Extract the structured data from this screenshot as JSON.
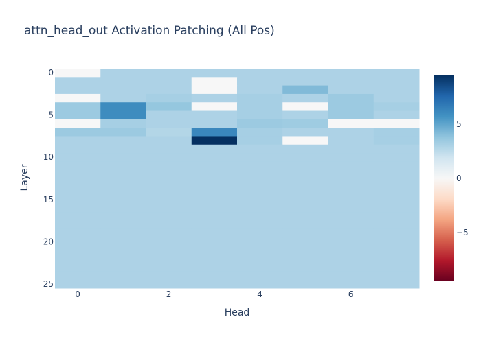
{
  "chart_data": {
    "type": "heatmap",
    "title": "attn_head_out Activation Patching (All Pos)",
    "xlabel": "Head",
    "ylabel": "Layer",
    "x_tickvals": [
      0,
      2,
      4,
      6
    ],
    "y_tickvals": [
      0,
      5,
      10,
      15,
      20,
      25
    ],
    "colorbar": {
      "tickvals": [
        5,
        0,
        -5
      ],
      "ticktext": [
        "5",
        "0",
        "−5"
      ],
      "zmin": -9.5,
      "zmax": 9.5,
      "colorscale": [
        "#67001f",
        "#b2182b",
        "#d6604d",
        "#f4a582",
        "#fddbc7",
        "#f7f7f7",
        "#d1e5f0",
        "#92c5de",
        "#4393c3",
        "#2166ac",
        "#053061"
      ]
    },
    "layers": 26,
    "heads": 8,
    "z": [
      [
        0.0,
        3.0,
        3.0,
        3.0,
        3.0,
        3.0,
        3.0,
        3.0
      ],
      [
        3.0,
        3.0,
        3.0,
        0.0,
        3.0,
        3.0,
        3.0,
        3.0
      ],
      [
        3.0,
        3.0,
        3.0,
        0.0,
        3.0,
        4.2,
        3.0,
        3.0
      ],
      [
        0.0,
        3.0,
        3.2,
        3.0,
        3.2,
        3.0,
        3.5,
        3.0
      ],
      [
        3.5,
        6.0,
        3.7,
        0.0,
        3.2,
        0.0,
        3.5,
        3.2
      ],
      [
        3.5,
        6.0,
        3.0,
        3.0,
        3.2,
        3.0,
        3.5,
        3.0
      ],
      [
        0.0,
        3.2,
        3.0,
        3.0,
        3.5,
        3.4,
        0.0,
        0.0
      ],
      [
        3.5,
        3.5,
        2.8,
        6.2,
        3.2,
        3.0,
        3.0,
        3.2
      ],
      [
        3.0,
        3.0,
        3.0,
        9.5,
        3.2,
        0.0,
        3.0,
        3.2
      ],
      [
        3.0,
        3.0,
        3.0,
        3.0,
        3.0,
        3.0,
        3.0,
        3.0
      ],
      [
        3.0,
        3.0,
        3.0,
        3.0,
        3.0,
        3.0,
        3.0,
        3.0
      ],
      [
        3.0,
        3.0,
        3.0,
        3.0,
        3.0,
        3.0,
        3.0,
        3.0
      ],
      [
        3.0,
        3.0,
        3.0,
        3.0,
        3.0,
        3.0,
        3.0,
        3.0
      ],
      [
        3.0,
        3.0,
        3.0,
        3.0,
        3.0,
        3.0,
        3.0,
        3.0
      ],
      [
        3.0,
        3.0,
        3.0,
        3.0,
        3.0,
        3.0,
        3.0,
        3.0
      ],
      [
        3.0,
        3.0,
        3.0,
        3.0,
        3.0,
        3.0,
        3.0,
        3.0
      ],
      [
        3.0,
        3.0,
        3.0,
        3.0,
        3.0,
        3.0,
        3.0,
        3.0
      ],
      [
        3.0,
        3.0,
        3.0,
        3.0,
        3.0,
        3.0,
        3.0,
        3.0
      ],
      [
        3.0,
        3.0,
        3.0,
        3.0,
        3.0,
        3.0,
        3.0,
        3.0
      ],
      [
        3.0,
        3.0,
        3.0,
        3.0,
        3.0,
        3.0,
        3.0,
        3.0
      ],
      [
        3.0,
        3.0,
        3.0,
        3.0,
        3.0,
        3.0,
        3.0,
        3.0
      ],
      [
        3.0,
        3.0,
        3.0,
        3.0,
        3.0,
        3.0,
        3.0,
        3.0
      ],
      [
        3.0,
        3.0,
        3.0,
        3.0,
        3.0,
        3.0,
        3.0,
        3.0
      ],
      [
        3.0,
        3.0,
        3.0,
        3.0,
        3.0,
        3.0,
        3.0,
        3.0
      ],
      [
        3.0,
        3.0,
        3.0,
        3.0,
        3.0,
        3.0,
        3.0,
        3.0
      ],
      [
        3.0,
        3.0,
        3.0,
        3.0,
        3.0,
        3.0,
        3.0,
        3.0
      ]
    ]
  }
}
